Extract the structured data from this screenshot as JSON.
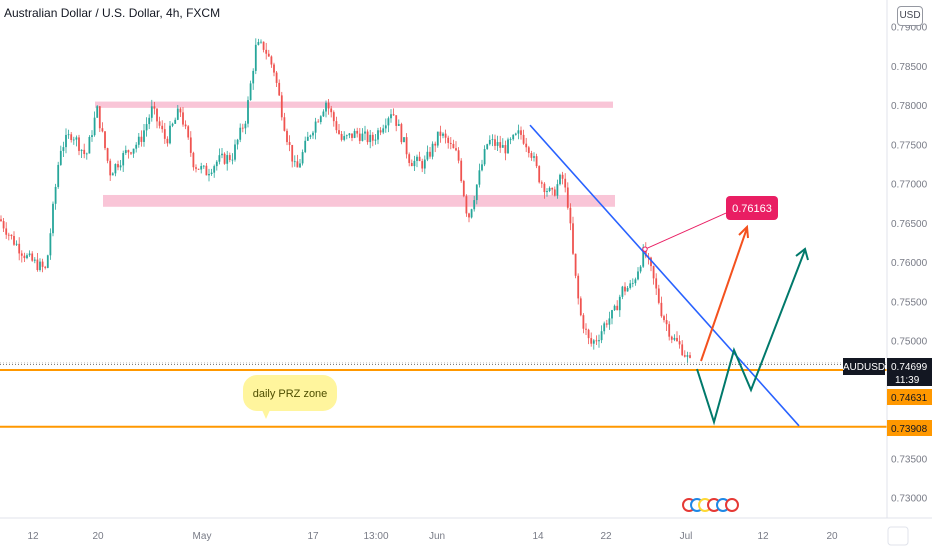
{
  "header": {
    "title": "Australian Dollar / U.S. Dollar, 4h, FXCM",
    "currency_button": "USD"
  },
  "chart_data": {
    "type": "candlestick",
    "title": "Australian Dollar / U.S. Dollar, 4h, FXCM",
    "symbol": "AUDUSD",
    "timeframe": "4h",
    "source": "FXCM",
    "ylim": [
      0.7285,
      0.7915
    ],
    "y_ticks": [
      0.79,
      0.785,
      0.78,
      0.775,
      0.77,
      0.765,
      0.76,
      0.755,
      0.75,
      0.745,
      0.74,
      0.735,
      0.73
    ],
    "y_tick_labels": [
      "0.79000",
      "0.78500",
      "0.78000",
      "0.77500",
      "0.77000",
      "0.76500",
      "0.76000",
      "0.75500",
      "0.75000",
      "0.74500",
      "0.74000",
      "0.73500",
      "0.73000"
    ],
    "x_ticks": [
      "12",
      "20",
      "May",
      "17",
      "13:00",
      "Jun",
      "14",
      "22",
      "Jul",
      "12",
      "20"
    ],
    "price_path": [
      [
        0,
        0.7655
      ],
      [
        12,
        0.763
      ],
      [
        28,
        0.7605
      ],
      [
        46,
        0.759
      ],
      [
        60,
        0.7745
      ],
      [
        72,
        0.7765
      ],
      [
        86,
        0.7735
      ],
      [
        97,
        0.7795
      ],
      [
        110,
        0.7715
      ],
      [
        126,
        0.774
      ],
      [
        140,
        0.7755
      ],
      [
        152,
        0.7795
      ],
      [
        166,
        0.7755
      ],
      [
        180,
        0.7795
      ],
      [
        194,
        0.7725
      ],
      [
        206,
        0.7715
      ],
      [
        218,
        0.773
      ],
      [
        232,
        0.7735
      ],
      [
        246,
        0.7785
      ],
      [
        256,
        0.7875
      ],
      [
        264,
        0.7875
      ],
      [
        274,
        0.7845
      ],
      [
        286,
        0.7765
      ],
      [
        296,
        0.7715
      ],
      [
        310,
        0.7765
      ],
      [
        326,
        0.7805
      ],
      [
        342,
        0.7755
      ],
      [
        356,
        0.7765
      ],
      [
        372,
        0.7755
      ],
      [
        392,
        0.7795
      ],
      [
        410,
        0.773
      ],
      [
        424,
        0.7725
      ],
      [
        440,
        0.7765
      ],
      [
        458,
        0.7735
      ],
      [
        468,
        0.7655
      ],
      [
        476,
        0.7695
      ],
      [
        488,
        0.7755
      ],
      [
        505,
        0.7745
      ],
      [
        520,
        0.7765
      ],
      [
        530,
        0.7745
      ],
      [
        540,
        0.7705
      ],
      [
        552,
        0.7685
      ],
      [
        562,
        0.771
      ],
      [
        568,
        0.7675
      ],
      [
        574,
        0.7595
      ],
      [
        580,
        0.7535
      ],
      [
        590,
        0.7495
      ],
      [
        598,
        0.7505
      ],
      [
        606,
        0.7525
      ],
      [
        614,
        0.7535
      ],
      [
        622,
        0.7565
      ],
      [
        632,
        0.757
      ],
      [
        644,
        0.7615
      ],
      [
        652,
        0.7585
      ],
      [
        662,
        0.7535
      ],
      [
        672,
        0.7505
      ],
      [
        682,
        0.749
      ],
      [
        692,
        0.7468
      ]
    ],
    "resistance_zone": {
      "upper": 0.7805,
      "lower": 0.7797,
      "label": ""
    },
    "support_zone": {
      "upper": 0.7686,
      "lower": 0.7671,
      "label": ""
    },
    "trendline": {
      "from": [
        "2021-06-14",
        0.7775
      ],
      "to": [
        "2021-07-14",
        0.7392
      ]
    },
    "target_label": "0.76163",
    "przone": {
      "label": "daily PRZ zone",
      "upper": 0.74631,
      "lower": 0.73908
    },
    "price_labels": [
      {
        "text": "AUDUSD",
        "value": 0.74699,
        "kind": "symbol"
      },
      {
        "text": "0.74699",
        "value": 0.74699,
        "kind": "last"
      },
      {
        "text": "11:39",
        "value": 0.74699,
        "kind": "countdown"
      },
      {
        "text": "0.74631",
        "value": 0.74631,
        "kind": "orange"
      },
      {
        "text": "0.73908",
        "value": 0.73908,
        "kind": "orange"
      }
    ],
    "colors": {
      "up": "#26a69a",
      "down": "#ef5350",
      "zone": "#f8bbd0",
      "trendline": "#2962ff",
      "orange": "#ff9800",
      "arrow_red": "#f4511e",
      "arrow_green": "#00796b",
      "target_bg": "#e91e63",
      "bubble": "#fff59d",
      "text": "#131722",
      "axis_text": "#787b86"
    },
    "grid": false,
    "legend": "none"
  }
}
